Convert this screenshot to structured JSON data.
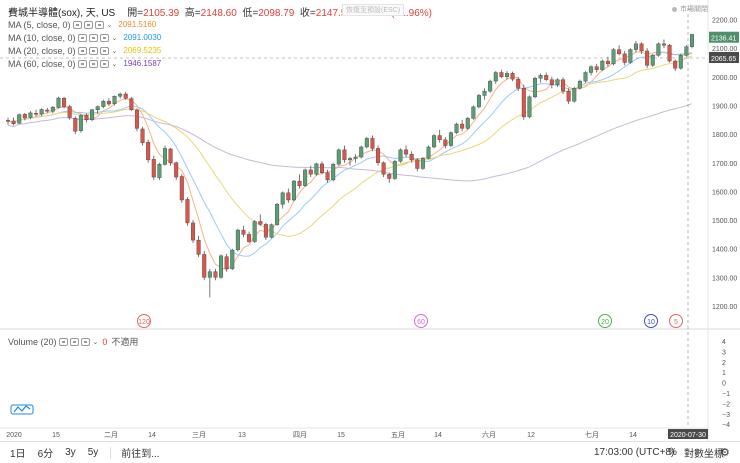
{
  "header": {
    "symbol": "費城半導體(sox), 天, US",
    "open_label": "開=",
    "open": "2105.39",
    "high_label": "高=",
    "high": "2148.60",
    "low_label": "低=",
    "low": "2098.79",
    "close_label": "收=",
    "close": "2147.55",
    "change": "+41.25 (+1.96%)",
    "esc_hint": "恢復至預設(ESC)",
    "market_status": "市場關閉"
  },
  "indicators": [
    {
      "label": "MA (5, close, 0)",
      "value": "2091.5160",
      "color": "#f08a24"
    },
    {
      "label": "MA (10, close, 0)",
      "value": "2091.0030",
      "color": "#2196f3"
    },
    {
      "label": "MA (20, close, 0)",
      "value": "2069.5235",
      "color": "#e6c200"
    },
    {
      "label": "MA (60, close, 0)",
      "value": "1946.1587",
      "color": "#7a3fb0"
    }
  ],
  "volume": {
    "label": "Volume (20)",
    "value": "0",
    "na": "不適用"
  },
  "price_axis": [
    "2200.00",
    "2100.00",
    "2000.00",
    "1900.00",
    "1800.00",
    "1700.00",
    "1600.00",
    "1500.00",
    "1400.00",
    "1300.00",
    "1200.00"
  ],
  "price_tags": {
    "last": "2136.41",
    "crosshair": "2065.65"
  },
  "volume_axis": [
    "4",
    "3",
    "2",
    "1",
    "0",
    "−1",
    "−2",
    "−3",
    "−4"
  ],
  "time_axis": [
    "2020",
    "15",
    "二月",
    "14",
    "三月",
    "13",
    "四月",
    "15",
    "五月",
    "14",
    "六月",
    "12",
    "七月",
    "14"
  ],
  "cursor_date": "2020-07-30",
  "badges": [
    "120",
    "60",
    "20",
    "10",
    "5"
  ],
  "bottom": {
    "ranges": [
      "1日",
      "6分",
      "3y",
      "5y"
    ],
    "goto": "前往到...",
    "time": "17:03:00 (UTC+8)",
    "pct": "%",
    "log": "對數坐標",
    "gear": "⚙"
  },
  "chart_data": {
    "type": "candlestick",
    "ylim": [
      1150,
      2230
    ],
    "candles": [
      [
        1848,
        1857,
        1832,
        1845
      ],
      [
        1846,
        1858,
        1830,
        1836
      ],
      [
        1838,
        1872,
        1836,
        1868
      ],
      [
        1869,
        1874,
        1848,
        1856
      ],
      [
        1858,
        1880,
        1852,
        1874
      ],
      [
        1873,
        1885,
        1862,
        1870
      ],
      [
        1870,
        1890,
        1862,
        1886
      ],
      [
        1884,
        1892,
        1874,
        1880
      ],
      [
        1880,
        1898,
        1872,
        1894
      ],
      [
        1893,
        1930,
        1890,
        1926
      ],
      [
        1925,
        1930,
        1890,
        1895
      ],
      [
        1896,
        1902,
        1850,
        1858
      ],
      [
        1855,
        1862,
        1800,
        1810
      ],
      [
        1812,
        1870,
        1805,
        1865
      ],
      [
        1866,
        1872,
        1840,
        1850
      ],
      [
        1850,
        1888,
        1845,
        1885
      ],
      [
        1885,
        1900,
        1870,
        1896
      ],
      [
        1896,
        1920,
        1890,
        1915
      ],
      [
        1915,
        1925,
        1898,
        1905
      ],
      [
        1906,
        1935,
        1900,
        1932
      ],
      [
        1932,
        1945,
        1924,
        1940
      ],
      [
        1940,
        1948,
        1920,
        1925
      ],
      [
        1924,
        1930,
        1880,
        1885
      ],
      [
        1884,
        1890,
        1810,
        1820
      ],
      [
        1818,
        1826,
        1760,
        1770
      ],
      [
        1772,
        1780,
        1700,
        1710
      ],
      [
        1712,
        1725,
        1640,
        1650
      ],
      [
        1648,
        1700,
        1640,
        1695
      ],
      [
        1694,
        1760,
        1690,
        1750
      ],
      [
        1748,
        1752,
        1690,
        1700
      ],
      [
        1700,
        1704,
        1640,
        1650
      ],
      [
        1652,
        1660,
        1560,
        1570
      ],
      [
        1572,
        1580,
        1480,
        1490
      ],
      [
        1490,
        1500,
        1420,
        1430
      ],
      [
        1430,
        1445,
        1370,
        1380
      ],
      [
        1380,
        1392,
        1290,
        1300
      ],
      [
        1300,
        1330,
        1230,
        1320
      ],
      [
        1320,
        1330,
        1290,
        1300
      ],
      [
        1300,
        1380,
        1295,
        1375
      ],
      [
        1372,
        1382,
        1320,
        1330
      ],
      [
        1330,
        1400,
        1325,
        1395
      ],
      [
        1396,
        1470,
        1390,
        1465
      ],
      [
        1465,
        1480,
        1440,
        1450
      ],
      [
        1450,
        1460,
        1420,
        1425
      ],
      [
        1425,
        1500,
        1420,
        1495
      ],
      [
        1495,
        1520,
        1480,
        1485
      ],
      [
        1485,
        1490,
        1430,
        1440
      ],
      [
        1440,
        1488,
        1436,
        1484
      ],
      [
        1484,
        1560,
        1480,
        1555
      ],
      [
        1555,
        1600,
        1540,
        1595
      ],
      [
        1595,
        1610,
        1560,
        1570
      ],
      [
        1570,
        1640,
        1565,
        1636
      ],
      [
        1636,
        1660,
        1610,
        1620
      ],
      [
        1620,
        1680,
        1615,
        1675
      ],
      [
        1675,
        1690,
        1650,
        1660
      ],
      [
        1660,
        1700,
        1655,
        1696
      ],
      [
        1696,
        1705,
        1660,
        1665
      ],
      [
        1665,
        1675,
        1630,
        1640
      ],
      [
        1640,
        1700,
        1635,
        1695
      ],
      [
        1695,
        1750,
        1690,
        1745
      ],
      [
        1745,
        1760,
        1700,
        1710
      ],
      [
        1710,
        1720,
        1690,
        1715
      ],
      [
        1715,
        1730,
        1700,
        1720
      ],
      [
        1720,
        1760,
        1715,
        1755
      ],
      [
        1755,
        1790,
        1750,
        1785
      ],
      [
        1785,
        1795,
        1740,
        1750
      ],
      [
        1750,
        1760,
        1690,
        1700
      ],
      [
        1700,
        1705,
        1650,
        1660
      ],
      [
        1660,
        1665,
        1630,
        1645
      ],
      [
        1645,
        1710,
        1640,
        1705
      ],
      [
        1705,
        1750,
        1700,
        1745
      ],
      [
        1745,
        1760,
        1720,
        1730
      ],
      [
        1730,
        1740,
        1700,
        1710
      ],
      [
        1710,
        1716,
        1670,
        1680
      ],
      [
        1680,
        1720,
        1675,
        1715
      ],
      [
        1715,
        1760,
        1712,
        1755
      ],
      [
        1755,
        1800,
        1750,
        1795
      ],
      [
        1795,
        1815,
        1770,
        1780
      ],
      [
        1780,
        1790,
        1750,
        1760
      ],
      [
        1760,
        1810,
        1755,
        1805
      ],
      [
        1805,
        1840,
        1800,
        1835
      ],
      [
        1835,
        1850,
        1810,
        1820
      ],
      [
        1820,
        1860,
        1815,
        1855
      ],
      [
        1855,
        1900,
        1850,
        1895
      ],
      [
        1895,
        1940,
        1890,
        1935
      ],
      [
        1935,
        1960,
        1920,
        1950
      ],
      [
        1950,
        1990,
        1945,
        1985
      ],
      [
        1985,
        2020,
        1975,
        2015
      ],
      [
        2015,
        2025,
        1995,
        2000
      ],
      [
        2000,
        2020,
        1990,
        2012
      ],
      [
        2012,
        2018,
        1985,
        1992
      ],
      [
        1992,
        2000,
        1950,
        1960
      ],
      [
        1960,
        1972,
        1850,
        1860
      ],
      [
        1860,
        1935,
        1855,
        1930
      ],
      [
        1930,
        2000,
        1925,
        1995
      ],
      [
        1995,
        2012,
        1980,
        2005
      ],
      [
        2005,
        2015,
        1985,
        1990
      ],
      [
        1990,
        2000,
        1960,
        1972
      ],
      [
        1972,
        1995,
        1965,
        1990
      ],
      [
        1990,
        1998,
        1940,
        1950
      ],
      [
        1950,
        1960,
        1905,
        1915
      ],
      [
        1915,
        1965,
        1910,
        1960
      ],
      [
        1960,
        1990,
        1955,
        1985
      ],
      [
        1985,
        2020,
        1980,
        2015
      ],
      [
        2015,
        2040,
        2005,
        2035
      ],
      [
        2035,
        2045,
        2015,
        2025
      ],
      [
        2025,
        2060,
        2020,
        2055
      ],
      [
        2055,
        2070,
        2035,
        2045
      ],
      [
        2045,
        2100,
        2040,
        2095
      ],
      [
        2095,
        2110,
        2075,
        2080
      ],
      [
        2080,
        2090,
        2040,
        2050
      ],
      [
        2050,
        2100,
        2045,
        2095
      ],
      [
        2095,
        2125,
        2085,
        2115
      ],
      [
        2115,
        2120,
        2080,
        2090
      ],
      [
        2090,
        2100,
        2030,
        2040
      ],
      [
        2040,
        2080,
        2035,
        2075
      ],
      [
        2075,
        2120,
        2070,
        2115
      ],
      [
        2115,
        2130,
        2100,
        2110
      ],
      [
        2110,
        2115,
        2050,
        2055
      ],
      [
        2055,
        2060,
        2020,
        2030
      ],
      [
        2030,
        2080,
        2025,
        2075
      ],
      [
        2075,
        2110,
        2070,
        2105
      ],
      [
        2105,
        2149,
        2099,
        2148
      ]
    ]
  }
}
